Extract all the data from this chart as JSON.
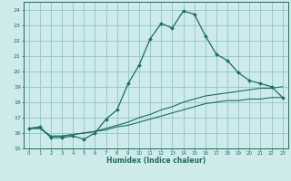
{
  "xlabel": "Humidex (Indice chaleur)",
  "bg_color": "#ceeaea",
  "grid_color": "#8cc8c8",
  "line_color": "#1a6e60",
  "xlim": [
    -0.5,
    23.5
  ],
  "ylim": [
    15,
    24.5
  ],
  "xticks": [
    0,
    1,
    2,
    3,
    4,
    5,
    6,
    7,
    8,
    9,
    10,
    11,
    12,
    13,
    14,
    15,
    16,
    17,
    18,
    19,
    20,
    21,
    22,
    23
  ],
  "yticks": [
    15,
    16,
    17,
    18,
    19,
    20,
    21,
    22,
    23,
    24
  ],
  "series1_x": [
    0,
    1,
    2,
    3,
    4,
    5,
    6,
    7,
    8,
    9,
    10,
    11,
    12,
    13,
    14,
    15,
    16,
    17,
    18,
    19,
    20,
    21,
    22,
    23
  ],
  "series1_y": [
    16.3,
    16.4,
    15.7,
    15.7,
    15.8,
    15.6,
    16.0,
    16.9,
    17.5,
    19.2,
    20.4,
    22.1,
    23.1,
    22.8,
    23.9,
    23.7,
    22.3,
    21.1,
    20.7,
    19.9,
    19.4,
    19.2,
    19.0,
    18.3
  ],
  "series2_x": [
    0,
    1,
    2,
    3,
    4,
    5,
    6,
    7,
    8,
    9,
    10,
    11,
    12,
    13,
    14,
    15,
    16,
    17,
    18,
    19,
    20,
    21,
    22,
    23
  ],
  "series2_y": [
    16.3,
    16.3,
    15.8,
    15.8,
    15.9,
    16.0,
    16.1,
    16.3,
    16.5,
    16.7,
    17.0,
    17.2,
    17.5,
    17.7,
    18.0,
    18.2,
    18.4,
    18.5,
    18.6,
    18.7,
    18.8,
    18.9,
    18.9,
    19.0
  ],
  "series3_x": [
    0,
    1,
    2,
    3,
    4,
    5,
    6,
    7,
    8,
    9,
    10,
    11,
    12,
    13,
    14,
    15,
    16,
    17,
    18,
    19,
    20,
    21,
    22,
    23
  ],
  "series3_y": [
    16.3,
    16.3,
    15.8,
    15.8,
    15.9,
    16.0,
    16.1,
    16.2,
    16.4,
    16.5,
    16.7,
    16.9,
    17.1,
    17.3,
    17.5,
    17.7,
    17.9,
    18.0,
    18.1,
    18.1,
    18.2,
    18.2,
    18.3,
    18.3
  ],
  "xtick_fontsize": 4.0,
  "ytick_fontsize": 4.5,
  "xlabel_fontsize": 5.5
}
